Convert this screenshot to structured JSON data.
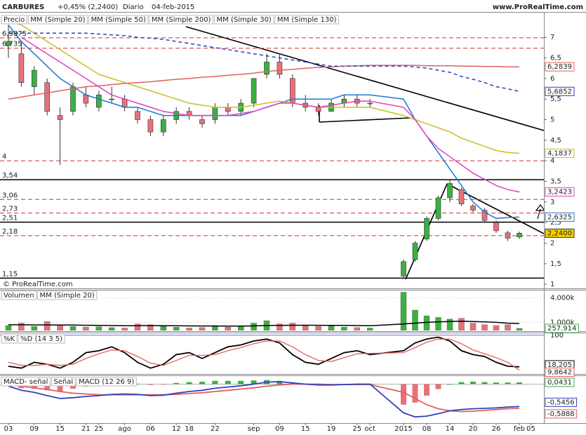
{
  "chart_data": [
    {
      "type": "candlestick",
      "title": "CARBURES",
      "change": "+0,45% (2,2400)",
      "period": "Diario",
      "date": "04-feb-2015",
      "source": "www.ProRealTime.com",
      "copyright": "© ProRealTime.com",
      "legend_label": "Precio",
      "categories": [
        "03",
        null,
        "09",
        null,
        "15",
        null,
        "21",
        "25",
        null,
        "ago",
        null,
        "06",
        null,
        "12",
        "18",
        null,
        "22",
        null,
        null,
        "sep",
        null,
        "09",
        null,
        "15",
        null,
        "19",
        null,
        "25",
        "oct",
        "2015",
        null,
        "08",
        null,
        "14",
        null,
        "20",
        null,
        "26",
        null,
        "feb",
        "05"
      ],
      "ohlc": [
        [
          6.8,
          7.3,
          6.5,
          6.9
        ],
        [
          6.6,
          6.9,
          5.8,
          5.9
        ],
        [
          5.8,
          6.3,
          5.6,
          6.2
        ],
        [
          5.9,
          6.0,
          5.1,
          5.2
        ],
        [
          5.1,
          5.3,
          3.9,
          5.0
        ],
        [
          5.2,
          5.9,
          5.1,
          5.8
        ],
        [
          5.6,
          5.8,
          5.3,
          5.4
        ],
        [
          5.3,
          5.7,
          5.2,
          5.6
        ],
        [
          5.5,
          5.8,
          5.4,
          5.5
        ],
        [
          5.5,
          5.6,
          5.2,
          5.3
        ],
        [
          5.2,
          5.3,
          4.9,
          5.0
        ],
        [
          5.0,
          5.1,
          4.6,
          4.7
        ],
        [
          4.7,
          5.1,
          4.6,
          5.0
        ],
        [
          5.0,
          5.3,
          4.9,
          5.2
        ],
        [
          5.2,
          5.3,
          5.0,
          5.1
        ],
        [
          5.0,
          5.1,
          4.8,
          4.9
        ],
        [
          5.0,
          5.4,
          4.9,
          5.3
        ],
        [
          5.3,
          5.4,
          5.1,
          5.2
        ],
        [
          5.2,
          5.5,
          5.1,
          5.4
        ],
        [
          5.4,
          6.0,
          5.3,
          6.0
        ],
        [
          6.1,
          6.6,
          6.0,
          6.4
        ],
        [
          6.4,
          6.6,
          6.0,
          6.1
        ],
        [
          6.0,
          6.1,
          5.3,
          5.4
        ],
        [
          5.4,
          5.6,
          5.2,
          5.3
        ],
        [
          5.3,
          5.4,
          5.1,
          5.2
        ],
        [
          5.2,
          5.5,
          5.2,
          5.4
        ],
        [
          5.4,
          5.6,
          5.3,
          5.5
        ],
        [
          5.5,
          5.6,
          5.3,
          5.4
        ],
        [
          5.4,
          5.5,
          5.3,
          5.4
        ],
        [
          1.2,
          1.6,
          1.15,
          1.55
        ],
        [
          1.6,
          2.05,
          1.55,
          2.0
        ],
        [
          2.1,
          2.65,
          2.05,
          2.6
        ],
        [
          2.6,
          3.15,
          2.55,
          3.1
        ],
        [
          3.1,
          3.54,
          3.0,
          3.45
        ],
        [
          3.3,
          3.35,
          2.9,
          2.95
        ],
        [
          2.9,
          2.95,
          2.75,
          2.8
        ],
        [
          2.8,
          2.85,
          2.5,
          2.55
        ],
        [
          2.5,
          2.55,
          2.25,
          2.3
        ],
        [
          2.25,
          2.3,
          2.05,
          2.12
        ],
        [
          2.15,
          2.28,
          2.1,
          2.24
        ],
        null
      ],
      "up_color": "#3cb043",
      "down_color": "#e8707a",
      "last_label": "2,2400",
      "last_color": "#f5d000",
      "series": [
        {
          "name": "MM (Simple 20)",
          "color": "#1f77d0",
          "dash": false,
          "last_label": "2,6325",
          "values": [
            7.3,
            6.9,
            6.6,
            6.3,
            6.0,
            5.8,
            5.6,
            5.5,
            5.4,
            5.3,
            5.3,
            5.2,
            5.1,
            5.1,
            5.1,
            5.1,
            5.1,
            5.1,
            5.1,
            5.2,
            5.3,
            5.4,
            5.5,
            5.5,
            5.5,
            5.5,
            5.6,
            5.6,
            5.6,
            5.5,
            5.0,
            4.6,
            4.2,
            3.8,
            3.4,
            3.0,
            2.75,
            2.6,
            2.62,
            2.6325,
            null
          ]
        },
        {
          "name": "MM (Simple 50)",
          "color": "#c8c020",
          "dash": false,
          "last_label": "4,1837",
          "values": [
            7.4,
            7.3,
            7.1,
            6.9,
            6.7,
            6.5,
            6.3,
            6.1,
            6.0,
            5.9,
            5.8,
            5.7,
            5.6,
            5.5,
            5.4,
            5.35,
            5.3,
            5.3,
            5.3,
            5.35,
            5.4,
            5.45,
            5.4,
            5.35,
            5.3,
            5.3,
            5.3,
            5.3,
            5.3,
            5.1,
            5.0,
            4.9,
            4.8,
            4.7,
            4.55,
            4.45,
            4.35,
            4.25,
            4.2,
            4.1837,
            null
          ]
        },
        {
          "name": "MM (Simple 200)",
          "color": "#e06060",
          "dash": false,
          "last_label": "6,2839",
          "values": [
            5.5,
            5.55,
            5.6,
            5.65,
            5.7,
            5.75,
            5.8,
            5.82,
            5.85,
            5.88,
            5.9,
            5.92,
            5.95,
            5.98,
            6.0,
            6.03,
            6.05,
            6.08,
            6.1,
            6.13,
            6.17,
            6.2,
            6.22,
            6.25,
            6.27,
            6.28,
            6.3,
            6.31,
            6.32,
            6.32,
            6.32,
            6.31,
            6.31,
            6.31,
            6.3,
            6.3,
            6.29,
            6.29,
            6.28,
            6.2839,
            null
          ]
        },
        {
          "name": "MM (Simple 30)",
          "color": "#e040c0",
          "dash": false,
          "last_label": "3,2423",
          "values": [
            null,
            7.0,
            6.8,
            6.6,
            6.4,
            6.2,
            6.0,
            5.8,
            5.6,
            5.5,
            5.4,
            5.3,
            5.2,
            5.15,
            5.1,
            5.1,
            5.1,
            5.1,
            5.15,
            5.2,
            5.3,
            5.4,
            5.4,
            5.35,
            5.3,
            5.35,
            5.4,
            5.45,
            5.45,
            5.3,
            5.0,
            4.6,
            4.3,
            4.1,
            3.9,
            3.7,
            3.55,
            3.4,
            3.3,
            3.2423,
            null
          ]
        },
        {
          "name": "MM (Simple 130)",
          "color": "#3040c0",
          "dash": true,
          "last_label": "5,6852",
          "values": [
            7.1,
            7.1,
            7.1,
            7.1,
            7.1,
            7.1,
            7.1,
            7.08,
            7.06,
            7.04,
            7.0,
            6.98,
            6.95,
            6.9,
            6.85,
            6.8,
            6.75,
            6.7,
            6.65,
            6.6,
            6.55,
            6.5,
            6.45,
            6.4,
            6.35,
            6.3,
            6.3,
            6.3,
            6.3,
            6.3,
            6.28,
            6.25,
            6.2,
            6.15,
            6.05,
            5.98,
            5.9,
            5.8,
            5.75,
            5.6852,
            null
          ]
        }
      ],
      "ylim": [
        0.9,
        7.6
      ],
      "yticks": [
        1,
        {
          "value": 1.5,
          "label": "1,5"
        },
        2,
        {
          "value": 2.5,
          "label": "2,5"
        },
        3,
        {
          "value": 3.5,
          "label": "3,5"
        },
        4,
        {
          "value": 4.5,
          "label": "4,5"
        },
        5,
        {
          "value": 5.5,
          "label": "5,5"
        },
        6,
        {
          "value": 6.5,
          "label": "6,5"
        },
        7
      ],
      "levels": [
        {
          "value": 6.9875,
          "label": "6,9875",
          "dash": true
        },
        {
          "value": 6.735,
          "label": "6,735",
          "dash": true
        },
        {
          "value": 4,
          "label": "4",
          "dash": true
        },
        {
          "value": 3.54,
          "label": "3,54",
          "dash": false
        },
        {
          "value": 3.06,
          "label": "3,06",
          "dash": true
        },
        {
          "value": 2.73,
          "label": "2,73",
          "dash": true
        },
        {
          "value": 2.51,
          "label": "2,51",
          "dash": false
        },
        {
          "value": 2.18,
          "label": "2,18",
          "dash": true
        },
        {
          "value": 1.15,
          "label": "1,15",
          "dash": false
        }
      ]
    },
    {
      "type": "bar",
      "name": "Volumen",
      "values": [
        600000,
        900000,
        500000,
        1100000,
        700000,
        500000,
        400000,
        450000,
        350000,
        300000,
        800000,
        700000,
        500000,
        400000,
        300000,
        350000,
        600000,
        400000,
        500000,
        900000,
        1200000,
        800000,
        900000,
        600000,
        500000,
        550000,
        400000,
        350000,
        300000,
        4700000,
        2500000,
        1800000,
        1600000,
        1400000,
        1500000,
        900000,
        700000,
        600000,
        700000,
        257914,
        null
      ],
      "value_labels": [
        null,
        null,
        null,
        null,
        null,
        null,
        null,
        null,
        null,
        null,
        null,
        null,
        null,
        null,
        null,
        null,
        null,
        null,
        null,
        null,
        null,
        null,
        null,
        null,
        null,
        null,
        null,
        null,
        null,
        null,
        null,
        null,
        null,
        null,
        null,
        null,
        null,
        null,
        null,
        "257.914",
        null
      ],
      "ma": {
        "name": "MM (Simple 20)",
        "color": "#000000",
        "values": [
          700000,
          700000,
          680000,
          680000,
          670000,
          660000,
          640000,
          620000,
          600000,
          580000,
          590000,
          600000,
          590000,
          580000,
          560000,
          550000,
          550000,
          540000,
          540000,
          560000,
          600000,
          620000,
          640000,
          650000,
          640000,
          630000,
          620000,
          600000,
          580000,
          800000,
          900000,
          1000000,
          1050000,
          1100000,
          1150000,
          1100000,
          1050000,
          1000000,
          900000,
          850000,
          null
        ]
      },
      "ylim": [
        0,
        5000000
      ],
      "yticks": [
        {
          "value": 4000000,
          "label": "4.000k"
        },
        {
          "value": 1000000,
          "label": "1.000k"
        }
      ]
    },
    {
      "type": "line",
      "series": [
        {
          "name": "%K",
          "color": "#000000",
          "last_label": "18,205",
          "values": [
            20,
            15,
            30,
            25,
            15,
            30,
            55,
            60,
            70,
            55,
            30,
            15,
            25,
            50,
            55,
            40,
            55,
            70,
            75,
            85,
            90,
            80,
            50,
            30,
            25,
            40,
            55,
            60,
            50,
            60,
            80,
            90,
            95,
            85,
            60,
            50,
            45,
            30,
            20,
            18.205,
            null
          ]
        },
        {
          "name": "%D (14 3 5)",
          "color": "#e06060",
          "last_label": "9,8642",
          "values": [
            30,
            22,
            22,
            25,
            22,
            25,
            40,
            52,
            62,
            60,
            45,
            28,
            22,
            35,
            48,
            48,
            50,
            60,
            68,
            78,
            85,
            85,
            70,
            50,
            35,
            32,
            42,
            52,
            53,
            55,
            68,
            82,
            90,
            90,
            78,
            62,
            52,
            42,
            30,
            9.8642,
            null
          ]
        }
      ],
      "ylim": [
        0,
        105
      ],
      "yticks": [
        100
      ]
    },
    {
      "type": "macd",
      "hist": {
        "name": "MACD- señal",
        "color": "#3cb043",
        "neg_color": "#e8707a",
        "last_label": "0,0431",
        "values": [
          -0.03,
          -0.1,
          -0.11,
          -0.15,
          -0.17,
          -0.11,
          -0.06,
          -0.02,
          0.01,
          0.02,
          0.01,
          -0.02,
          -0.01,
          0.03,
          0.05,
          0.06,
          0.08,
          0.08,
          0.08,
          0.09,
          0.1,
          0.08,
          0.03,
          0.0,
          -0.02,
          -0.01,
          0.0,
          0.01,
          0.01,
          -0.5,
          -0.45,
          -0.28,
          -0.12,
          0.0,
          0.05,
          0.06,
          0.05,
          0.04,
          0.04,
          0.0431,
          null
        ]
      },
      "series": [
        {
          "name": "Señal",
          "color": "#e06060",
          "last_label": "-0,5888",
          "values": [
            -0.02,
            -0.05,
            -0.09,
            -0.13,
            -0.18,
            -0.22,
            -0.24,
            -0.26,
            -0.26,
            -0.26,
            -0.26,
            -0.26,
            -0.26,
            -0.25,
            -0.23,
            -0.21,
            -0.18,
            -0.15,
            -0.12,
            -0.09,
            -0.05,
            -0.02,
            0.0,
            0.0,
            0.0,
            -0.01,
            -0.01,
            -0.01,
            -0.01,
            -0.2,
            -0.35,
            -0.5,
            -0.6,
            -0.65,
            -0.67,
            -0.66,
            -0.64,
            -0.62,
            -0.6,
            -0.5888,
            null
          ]
        },
        {
          "name": "MACD (12 26 9)",
          "color": "#3040c0",
          "last_label": "-0,5456",
          "values": [
            -0.05,
            -0.15,
            -0.2,
            -0.28,
            -0.35,
            -0.33,
            -0.3,
            -0.28,
            -0.25,
            -0.24,
            -0.25,
            -0.28,
            -0.27,
            -0.22,
            -0.18,
            -0.15,
            -0.1,
            -0.07,
            -0.04,
            0.0,
            0.05,
            0.06,
            0.03,
            0.0,
            -0.02,
            -0.02,
            -0.01,
            0.0,
            0.0,
            -0.7,
            -0.8,
            -0.78,
            -0.72,
            -0.65,
            -0.62,
            -0.6,
            -0.59,
            -0.58,
            -0.56,
            -0.5456,
            null
          ]
        }
      ],
      "ylim": [
        -0.95,
        0.18
      ]
    }
  ]
}
